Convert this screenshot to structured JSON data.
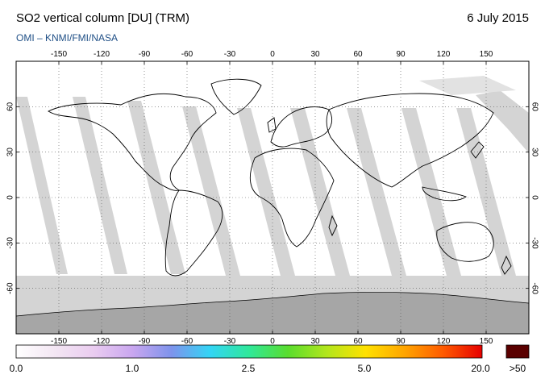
{
  "header": {
    "title": "SO2 vertical column [DU] (TRM)",
    "date": "6 July 2015",
    "subtitle": "OMI  –  KNMI/FMI/NASA"
  },
  "map": {
    "lon_ticks": [
      -150,
      -120,
      -90,
      -60,
      -30,
      0,
      30,
      60,
      90,
      120,
      150
    ],
    "lat_ticks": [
      60,
      30,
      0,
      -30,
      -60
    ],
    "lon_range": [
      -180,
      180
    ],
    "lat_range": [
      -90,
      90
    ],
    "colors": {
      "land_outline": "#000000",
      "missing_data": "#d4d4d4",
      "missing_data_dark": "#a8a8a8",
      "antarctica": "#a6a6a6",
      "background": "#ffffff",
      "grid": "#555555"
    }
  },
  "colorbar": {
    "labels": [
      "0.0",
      "1.0",
      "2.5",
      "5.0",
      "20.0"
    ],
    "overflow_label": ">50",
    "overflow_color": "#5a0000",
    "stops": [
      "#ffffff",
      "#f3e6f3",
      "#eaccf0",
      "#c9a6ef",
      "#7e93ec",
      "#33d5f5",
      "#2fe89a",
      "#59dd2e",
      "#b2e61c",
      "#ffe100",
      "#ffa500",
      "#ff5a00",
      "#e60000"
    ]
  }
}
